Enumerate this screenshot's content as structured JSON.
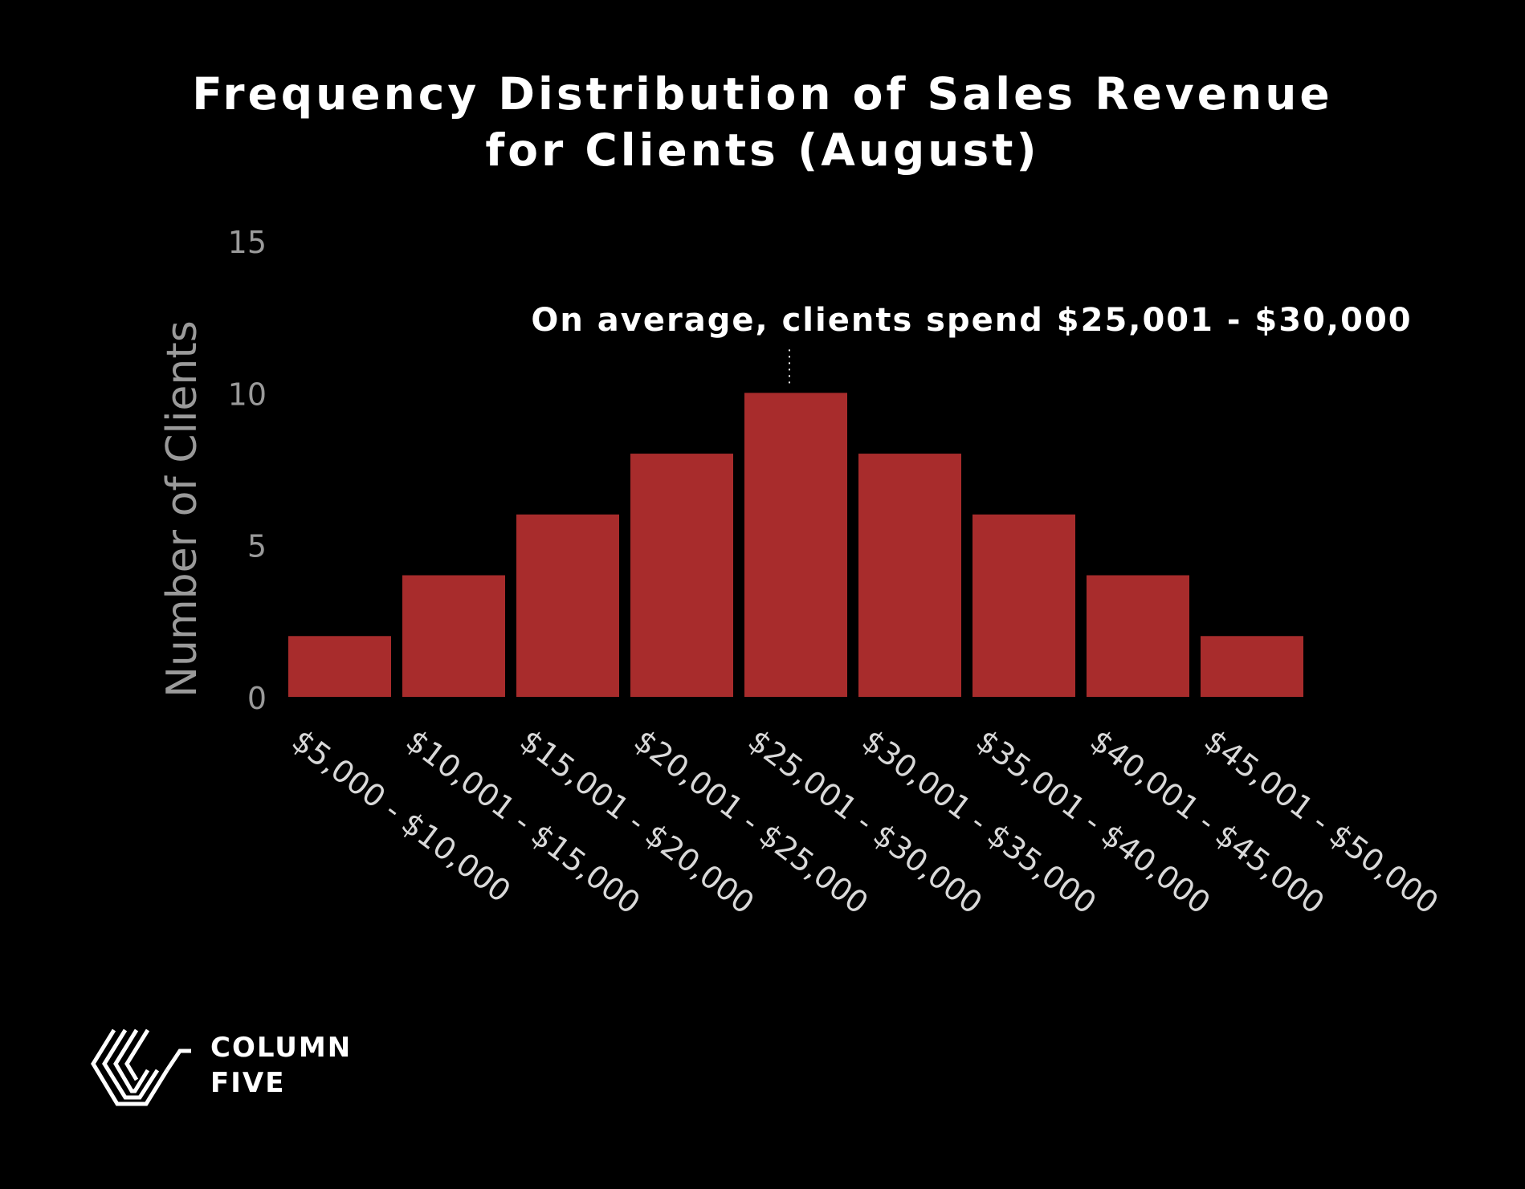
{
  "chart_data": {
    "type": "bar",
    "title_lines": [
      "Frequency Distribution of Sales Revenue",
      "for Clients (August)"
    ],
    "ylabel": "Number of Clients",
    "xlabel": "",
    "ylim": [
      0,
      15
    ],
    "yticks": [
      0,
      5,
      10,
      15
    ],
    "categories": [
      "$5,000 - $10,000",
      "$10,001 - $15,000",
      "$15,001 - $20,000",
      "$20,001 - $25,000",
      "$25,001 - $30,000",
      "$30,001 - $35,000",
      "$35,001 - $40,000",
      "$40,001 - $45,000",
      "$45,001 - $50,000"
    ],
    "values": [
      2,
      4,
      6,
      8,
      10,
      8,
      6,
      4,
      2
    ],
    "bar_color": "#a82c2c",
    "grid": false,
    "annotation": {
      "text": "On average, clients spend $25,001 - $30,000",
      "category_index": 4
    }
  },
  "logo": {
    "line1": "COLUMN",
    "line2": "FIVE"
  },
  "colors": {
    "background": "#000000",
    "text": "#ffffff",
    "axis_text": "#9a9a9a",
    "tick_text": "#d9d9d9"
  }
}
